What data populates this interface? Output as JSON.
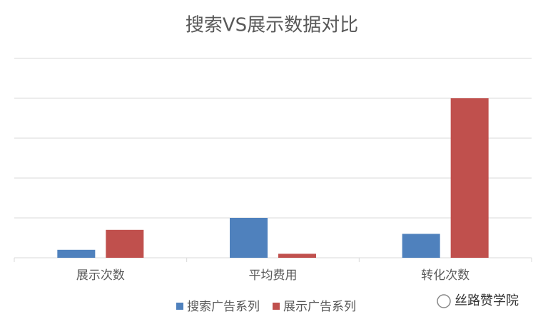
{
  "chart_data": {
    "type": "bar",
    "title": "搜索VS展示数据对比",
    "categories": [
      "展示次数",
      "平均费用",
      "转化次数"
    ],
    "series": [
      {
        "name": "搜索广告系列",
        "color": "#4f81bd",
        "values": [
          0.2,
          1.0,
          0.6
        ]
      },
      {
        "name": "展示广告系列",
        "color": "#c0504d",
        "values": [
          0.7,
          0.1,
          4.0
        ]
      }
    ],
    "ylim": [
      0,
      5
    ],
    "yticks": [
      0,
      1,
      2,
      3,
      4,
      5
    ],
    "grid": true,
    "legend": "bottom",
    "watermark": "丝路赞学院"
  }
}
